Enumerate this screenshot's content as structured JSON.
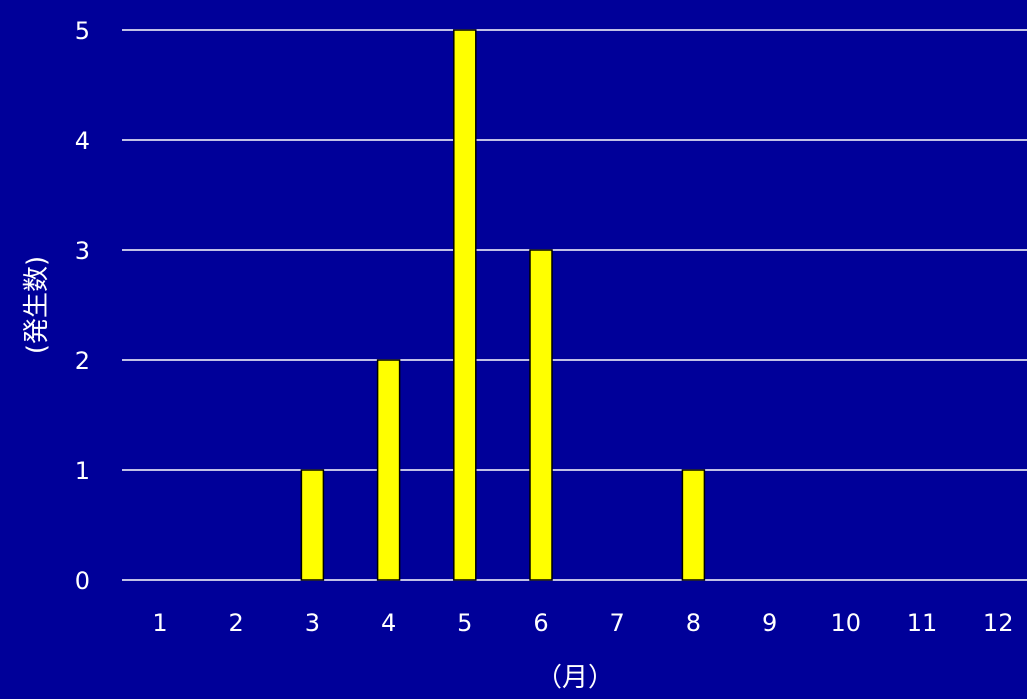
{
  "chart_data": {
    "type": "bar",
    "title": "",
    "categories": [
      "1",
      "2",
      "3",
      "4",
      "5",
      "6",
      "7",
      "8",
      "9",
      "10",
      "11",
      "12"
    ],
    "values": [
      0,
      0,
      1,
      2,
      5,
      3,
      0,
      1,
      0,
      0,
      0,
      0
    ],
    "xlabel": "（月）",
    "ylabel": "(発生数)",
    "ylim": [
      0,
      5
    ],
    "yticks": [
      "0",
      "1",
      "2",
      "3",
      "4",
      "5"
    ],
    "grid": true,
    "colors": {
      "background": "#000099",
      "bar": "#ffff00",
      "bar_outline": "#000000",
      "grid": "#ffffff",
      "text": "#ffffff"
    }
  }
}
